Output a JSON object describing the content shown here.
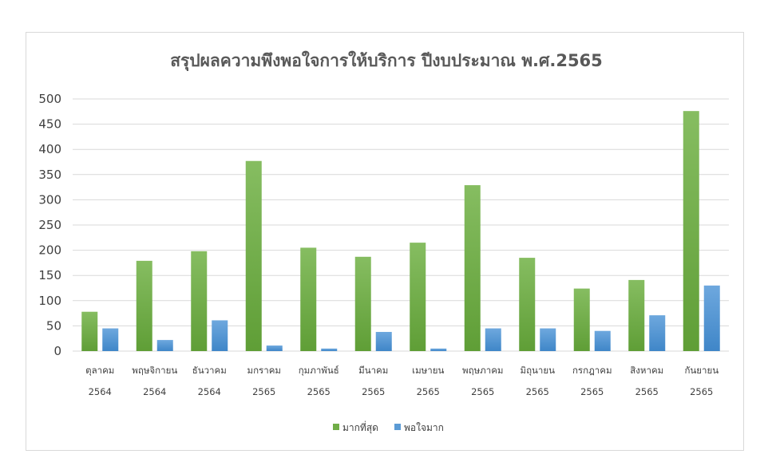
{
  "chart_data": {
    "type": "bar",
    "title": "สรุปผลความพึงพอใจการให้บริการ ปีงบประมาณ พ.ศ.2565",
    "xlabel": "",
    "ylabel": "",
    "ylim": [
      0,
      500
    ],
    "yticks": [
      0,
      50,
      100,
      150,
      200,
      250,
      300,
      350,
      400,
      450,
      500
    ],
    "grid": true,
    "legend_position": "bottom",
    "categories": [
      [
        "ตุลาคม",
        "2564"
      ],
      [
        "พฤษจิกายน",
        "2564"
      ],
      [
        "ธันวาคม",
        "2564"
      ],
      [
        "มกราคม",
        "2565"
      ],
      [
        "กุมภาพันธ์",
        "2565"
      ],
      [
        "มีนาคม",
        "2565"
      ],
      [
        "เมษายน",
        "2565"
      ],
      [
        "พฤษภาคม",
        "2565"
      ],
      [
        "มิถุนายน",
        "2565"
      ],
      [
        "กรกฎาคม",
        "2565"
      ],
      [
        "สิงหาคม",
        "2565"
      ],
      [
        "กันยายน",
        "2565"
      ]
    ],
    "series": [
      {
        "name": "มากที่สุด",
        "color": "#70ad47",
        "values": [
          78,
          179,
          198,
          377,
          205,
          187,
          215,
          329,
          185,
          124,
          141,
          476
        ]
      },
      {
        "name": "พอใจมาก",
        "color": "#5b9bd5",
        "values": [
          45,
          22,
          61,
          11,
          5,
          38,
          5,
          45,
          45,
          40,
          71,
          130
        ]
      }
    ]
  }
}
